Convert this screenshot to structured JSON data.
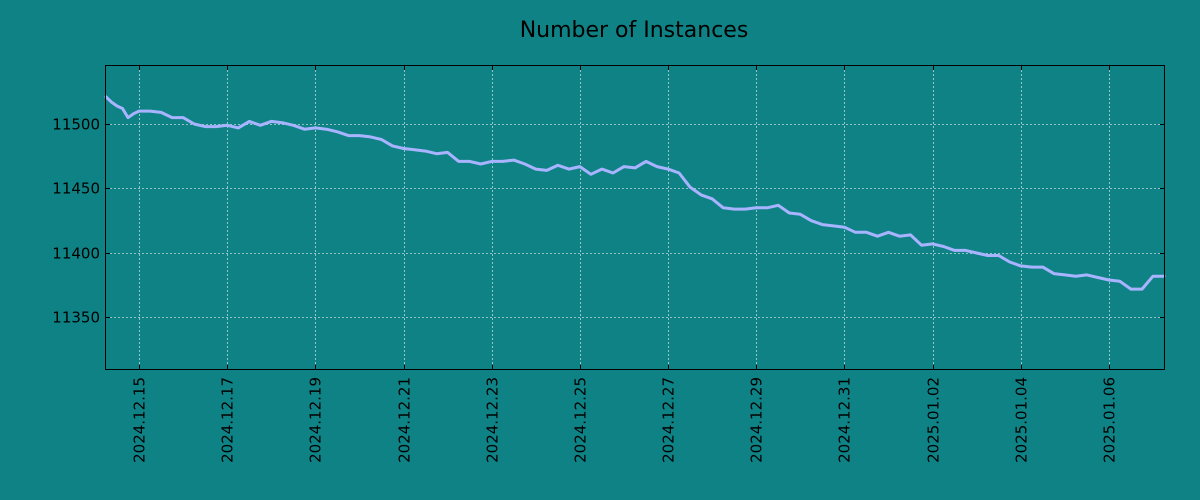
{
  "chart_data": {
    "type": "line",
    "title": "Number of Instances",
    "xlabel": "",
    "ylabel": "",
    "x_ticks": [
      "2024.12.15",
      "2024.12.17",
      "2024.12.19",
      "2024.12.21",
      "2024.12.23",
      "2024.12.25",
      "2024.12.27",
      "2024.12.29",
      "2024.12.31",
      "2025.01.02",
      "2025.01.04",
      "2025.01.06"
    ],
    "y_ticks": [
      11350,
      11400,
      11450,
      11500
    ],
    "xlim": [
      "2024.12.14 06:00",
      "2025.01.07 06:00"
    ],
    "ylim": [
      11310,
      11545
    ],
    "grid": true,
    "series": [
      {
        "color": "#a8b4ff",
        "points": [
          [
            "2024.12.14 06:00",
            11521
          ],
          [
            "2024.12.14 09:00",
            11517
          ],
          [
            "2024.12.14 12:00",
            11514
          ],
          [
            "2024.12.14 15:00",
            11512
          ],
          [
            "2024.12.14 18:00",
            11505
          ],
          [
            "2024.12.14 21:00",
            11508
          ],
          [
            "2024.12.15 00:00",
            11510
          ],
          [
            "2024.12.15 06:00",
            11510
          ],
          [
            "2024.12.15 12:00",
            11509
          ],
          [
            "2024.12.15 18:00",
            11505
          ],
          [
            "2024.12.16 00:00",
            11505
          ],
          [
            "2024.12.16 06:00",
            11500
          ],
          [
            "2024.12.16 12:00",
            11498
          ],
          [
            "2024.12.16 18:00",
            11498
          ],
          [
            "2024.12.17 00:00",
            11499
          ],
          [
            "2024.12.17 06:00",
            11497
          ],
          [
            "2024.12.17 12:00",
            11502
          ],
          [
            "2024.12.17 18:00",
            11499
          ],
          [
            "2024.12.18 00:00",
            11502
          ],
          [
            "2024.12.18 06:00",
            11501
          ],
          [
            "2024.12.18 12:00",
            11499
          ],
          [
            "2024.12.18 18:00",
            11496
          ],
          [
            "2024.12.19 00:00",
            11497
          ],
          [
            "2024.12.19 06:00",
            11496
          ],
          [
            "2024.12.19 12:00",
            11494
          ],
          [
            "2024.12.19 18:00",
            11491
          ],
          [
            "2024.12.20 00:00",
            11491
          ],
          [
            "2024.12.20 06:00",
            11490
          ],
          [
            "2024.12.20 12:00",
            11488
          ],
          [
            "2024.12.20 18:00",
            11483
          ],
          [
            "2024.12.21 00:00",
            11481
          ],
          [
            "2024.12.21 06:00",
            11480
          ],
          [
            "2024.12.21 12:00",
            11479
          ],
          [
            "2024.12.21 18:00",
            11477
          ],
          [
            "2024.12.22 00:00",
            11478
          ],
          [
            "2024.12.22 06:00",
            11471
          ],
          [
            "2024.12.22 12:00",
            11471
          ],
          [
            "2024.12.22 18:00",
            11469
          ],
          [
            "2024.12.23 00:00",
            11471
          ],
          [
            "2024.12.23 06:00",
            11471
          ],
          [
            "2024.12.23 12:00",
            11472
          ],
          [
            "2024.12.23 18:00",
            11469
          ],
          [
            "2024.12.24 00:00",
            11465
          ],
          [
            "2024.12.24 06:00",
            11464
          ],
          [
            "2024.12.24 12:00",
            11468
          ],
          [
            "2024.12.24 18:00",
            11465
          ],
          [
            "2024.12.25 00:00",
            11467
          ],
          [
            "2024.12.25 06:00",
            11461
          ],
          [
            "2024.12.25 12:00",
            11465
          ],
          [
            "2024.12.25 18:00",
            11462
          ],
          [
            "2024.12.26 00:00",
            11467
          ],
          [
            "2024.12.26 06:00",
            11466
          ],
          [
            "2024.12.26 12:00",
            11471
          ],
          [
            "2024.12.26 18:00",
            11467
          ],
          [
            "2024.12.27 00:00",
            11465
          ],
          [
            "2024.12.27 06:00",
            11462
          ],
          [
            "2024.12.27 12:00",
            11451
          ],
          [
            "2024.12.27 18:00",
            11445
          ],
          [
            "2024.12.28 00:00",
            11442
          ],
          [
            "2024.12.28 06:00",
            11435
          ],
          [
            "2024.12.28 12:00",
            11434
          ],
          [
            "2024.12.28 18:00",
            11434
          ],
          [
            "2024.12.29 00:00",
            11435
          ],
          [
            "2024.12.29 06:00",
            11435
          ],
          [
            "2024.12.29 12:00",
            11437
          ],
          [
            "2024.12.29 18:00",
            11431
          ],
          [
            "2024.12.30 00:00",
            11430
          ],
          [
            "2024.12.30 06:00",
            11425
          ],
          [
            "2024.12.30 12:00",
            11422
          ],
          [
            "2024.12.30 18:00",
            11421
          ],
          [
            "2024.12.31 00:00",
            11420
          ],
          [
            "2024.12.31 06:00",
            11416
          ],
          [
            "2024.12.31 12:00",
            11416
          ],
          [
            "2024.12.31 18:00",
            11413
          ],
          [
            "2025.01.01 00:00",
            11416
          ],
          [
            "2025.01.01 06:00",
            11413
          ],
          [
            "2025.01.01 12:00",
            11414
          ],
          [
            "2025.01.01 18:00",
            11406
          ],
          [
            "2025.01.02 00:00",
            11407
          ],
          [
            "2025.01.02 06:00",
            11405
          ],
          [
            "2025.01.02 12:00",
            11402
          ],
          [
            "2025.01.02 18:00",
            11402
          ],
          [
            "2025.01.03 00:00",
            11400
          ],
          [
            "2025.01.03 06:00",
            11398
          ],
          [
            "2025.01.03 12:00",
            11398
          ],
          [
            "2025.01.03 18:00",
            11393
          ],
          [
            "2025.01.04 00:00",
            11390
          ],
          [
            "2025.01.04 06:00",
            11389
          ],
          [
            "2025.01.04 12:00",
            11389
          ],
          [
            "2025.01.04 18:00",
            11384
          ],
          [
            "2025.01.05 00:00",
            11383
          ],
          [
            "2025.01.05 06:00",
            11382
          ],
          [
            "2025.01.05 12:00",
            11383
          ],
          [
            "2025.01.05 18:00",
            11381
          ],
          [
            "2025.01.06 00:00",
            11379
          ],
          [
            "2025.01.06 06:00",
            11378
          ],
          [
            "2025.01.06 12:00",
            11372
          ],
          [
            "2025.01.06 18:00",
            11372
          ],
          [
            "2025.01.07 00:00",
            11382
          ],
          [
            "2025.01.07 06:00",
            11382
          ]
        ]
      }
    ]
  }
}
